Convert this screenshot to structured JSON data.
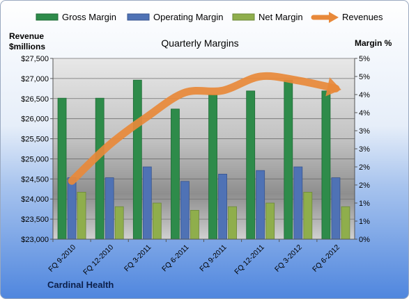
{
  "chart_data": {
    "type": "bar",
    "title": "Quarterly Margins",
    "left_axis_label_line1": "Revenue",
    "left_axis_label_line2": "$millions",
    "right_axis_label": "Margin %",
    "footer": "Cardinal Health",
    "categories": [
      "FQ 9-2010",
      "FQ 12-2010",
      "FQ 3-2011",
      "FQ 6-2011",
      "FQ 9-2011",
      "FQ 12-2011",
      "FQ 3-2012",
      "FQ 6-2012"
    ],
    "left_axis": {
      "min": 23000,
      "max": 27500,
      "step": 500,
      "tick_labels": [
        "$23,000",
        "$23,500",
        "$24,000",
        "$24,500",
        "$25,000",
        "$25,500",
        "$26,000",
        "$26,500",
        "$27,000",
        "$27,500"
      ]
    },
    "right_axis": {
      "min": 0,
      "max": 5,
      "step": 0.5,
      "tick_labels": [
        "0%",
        "1%",
        "1%",
        "2%",
        "2%",
        "3%",
        "3%",
        "4%",
        "4%",
        "5%",
        "5%"
      ]
    },
    "series": [
      {
        "name": "Gross Margin",
        "type": "bar",
        "axis": "right",
        "color": "#2E8B4A",
        "values": [
          3.9,
          3.9,
          4.4,
          3.6,
          4.0,
          4.1,
          4.4,
          4.1
        ]
      },
      {
        "name": "Operating Margin",
        "type": "bar",
        "axis": "right",
        "color": "#4F72B5",
        "values": [
          1.7,
          1.7,
          2.0,
          1.6,
          1.8,
          1.9,
          2.0,
          1.7
        ]
      },
      {
        "name": "Net Margin",
        "type": "bar",
        "axis": "right",
        "color": "#8FAE4C",
        "values": [
          1.3,
          0.9,
          1.0,
          0.8,
          0.9,
          1.0,
          1.3,
          0.9
        ]
      },
      {
        "name": "Revenues",
        "type": "line",
        "axis": "left",
        "color": "#E8893A",
        "values": [
          24450,
          25350,
          26050,
          26650,
          26700,
          27050,
          26950,
          26750
        ]
      }
    ],
    "legend_position": "top",
    "grid": true
  }
}
